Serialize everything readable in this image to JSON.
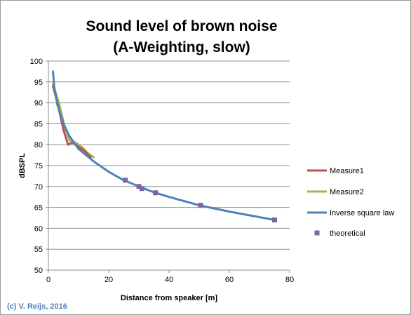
{
  "chart_data": {
    "type": "scatter",
    "title": "Sound level of brown noise",
    "subtitle": "(A-Weighting, slow)",
    "xlabel": "Distance from speaker [m]",
    "ylabel": "dBSPL",
    "xlim": [
      0,
      80
    ],
    "ylim": [
      50,
      100
    ],
    "xticks": [
      0,
      20,
      40,
      60,
      80
    ],
    "yticks": [
      50,
      55,
      60,
      65,
      70,
      75,
      80,
      85,
      90,
      95,
      100
    ],
    "grid": "horizontal",
    "legend_position": "right",
    "series": [
      {
        "name": "Measure1",
        "kind": "line",
        "color": "#c0504d",
        "points": [
          [
            1.5,
            94.0
          ],
          [
            3.0,
            90.0
          ],
          [
            5.0,
            83.5
          ],
          [
            6.5,
            80.0
          ],
          [
            8.0,
            80.5
          ],
          [
            10.0,
            79.5
          ],
          [
            12.0,
            78.5
          ],
          [
            14.0,
            77.0
          ]
        ]
      },
      {
        "name": "Measure2",
        "kind": "line",
        "color": "#9bbb59",
        "points": [
          [
            1.5,
            94.5
          ],
          [
            3.5,
            90.0
          ],
          [
            5.5,
            84.0
          ],
          [
            7.0,
            81.0
          ],
          [
            9.0,
            80.5
          ],
          [
            11.0,
            79.5
          ],
          [
            13.0,
            78.0
          ],
          [
            15.0,
            77.0
          ]
        ]
      },
      {
        "name": "Inverse square law",
        "kind": "line",
        "color": "#4f81bd",
        "points": [
          [
            1.5,
            97.5
          ],
          [
            2.0,
            93.5
          ],
          [
            3.0,
            89.5
          ],
          [
            5.0,
            85.0
          ],
          [
            7.0,
            82.0
          ],
          [
            10.0,
            79.0
          ],
          [
            15.0,
            76.0
          ],
          [
            20.0,
            73.5
          ],
          [
            25.0,
            71.5
          ],
          [
            30.0,
            70.0
          ],
          [
            35.0,
            68.6
          ],
          [
            40.0,
            67.5
          ],
          [
            50.0,
            65.5
          ],
          [
            60.0,
            64.0
          ],
          [
            75.0,
            62.0
          ]
        ]
      },
      {
        "name": "theoretical",
        "kind": "marker",
        "color": "#8064a2",
        "points": [
          [
            25.5,
            71.5
          ],
          [
            30.0,
            70.0
          ],
          [
            31.0,
            69.5
          ],
          [
            35.5,
            68.5
          ],
          [
            50.5,
            65.5
          ],
          [
            75.0,
            62.0
          ]
        ]
      }
    ],
    "annotation": "(c) V. Reijs, 2016",
    "annotation_color": "#4f81bd"
  }
}
